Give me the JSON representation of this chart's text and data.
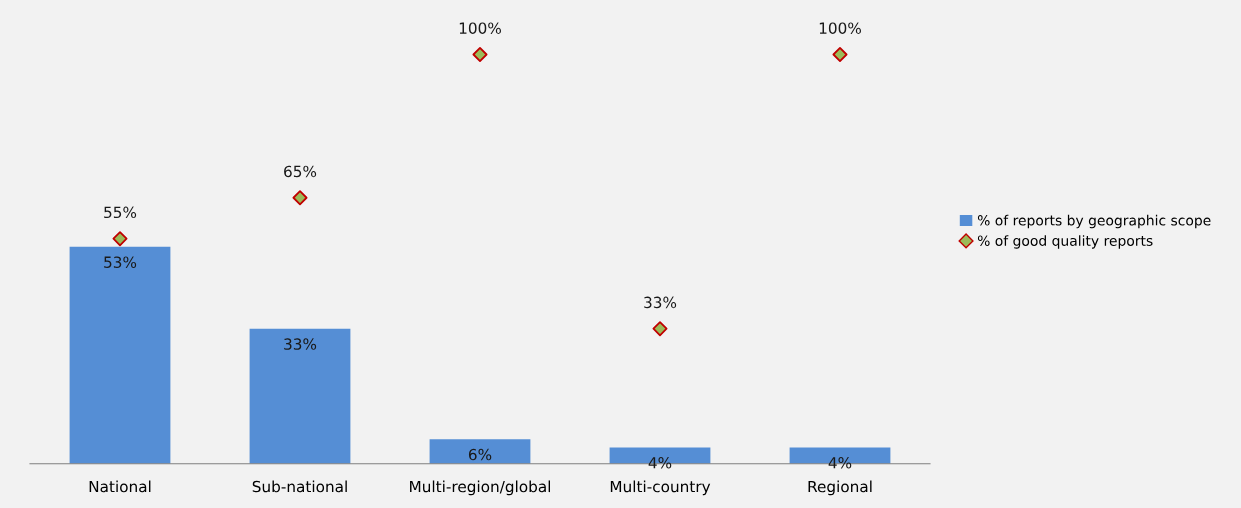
{
  "chart_data": {
    "type": "bar",
    "categories": [
      "National",
      "Sub-national",
      "Multi-region/global",
      "Multi-country",
      "Regional"
    ],
    "series": [
      {
        "name": "% of reports by geographic scope",
        "color": "#558ed5",
        "values": [
          53,
          33,
          6,
          4,
          4
        ],
        "value_labels": [
          "53%",
          "33%",
          "6%",
          "4%",
          "4%"
        ]
      },
      {
        "name": "% of good quality reports",
        "type": "scatter",
        "color": "#9bbb59",
        "values": [
          55,
          65,
          100,
          33,
          100
        ],
        "value_labels": [
          "55%",
          "65%",
          "100%",
          "33%",
          "100%"
        ]
      }
    ],
    "marker": "diamond",
    "tick_labels": "x",
    "grid": false,
    "legend": "right"
  }
}
